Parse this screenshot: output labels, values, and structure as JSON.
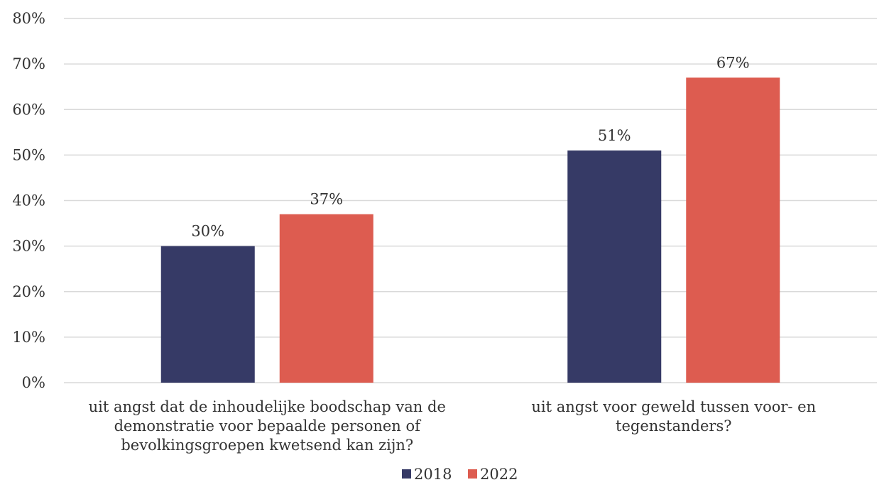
{
  "chart_data": {
    "type": "bar",
    "categories": [
      [
        "uit angst dat de inhoudelijke boodschap van de",
        "demonstratie voor bepaalde personen of",
        "bevolkingsgroepen kwetsend kan zijn?"
      ],
      [
        "uit angst voor geweld tussen voor- en",
        "tegenstanders?"
      ]
    ],
    "series": [
      {
        "name": "2018",
        "values": [
          30,
          51
        ],
        "labels": [
          "30%",
          "51%"
        ],
        "color": "#363a66"
      },
      {
        "name": "2022",
        "values": [
          37,
          67
        ],
        "labels": [
          "37%",
          "67%"
        ],
        "color": "#dd5c50"
      }
    ],
    "yticks": [
      "0%",
      "10%",
      "20%",
      "30%",
      "40%",
      "50%",
      "60%",
      "70%",
      "80%"
    ],
    "ylim": [
      0,
      80
    ],
    "grid": true,
    "legend_position": "bottom"
  }
}
